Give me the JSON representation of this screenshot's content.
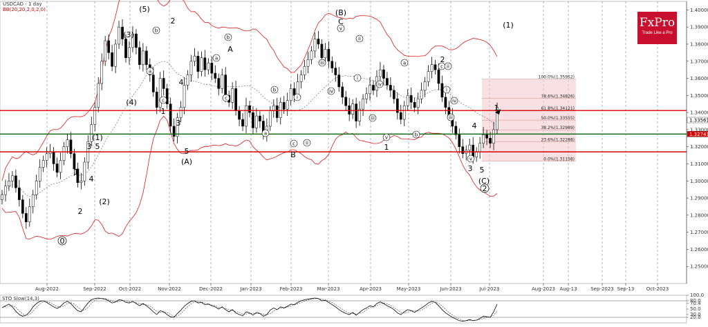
{
  "chart_data": {
    "type": "candlestick",
    "title": "USDCAD - 1 day",
    "indicator_label": "BB(20,20,2,0,2,0)",
    "ylim": [
      1.24,
      1.405
    ],
    "y_ticks": [
      "1.40000",
      "1.39000",
      "1.38000",
      "1.37000",
      "1.36000",
      "1.35000",
      "1.34000",
      "1.33000",
      "1.32000",
      "1.31000",
      "1.30000",
      "1.29000",
      "1.28000",
      "1.27000",
      "1.26000",
      "1.25000"
    ],
    "y_tick_values": [
      1.4,
      1.39,
      1.38,
      1.37,
      1.36,
      1.35,
      1.34,
      1.33,
      1.32,
      1.31,
      1.3,
      1.29,
      1.28,
      1.27,
      1.26,
      1.25
    ],
    "x_ticks": [
      "Aug-2022",
      "Sep-2022",
      "Oct-2022",
      "Nov-2022",
      "Dec-2022",
      "Jan-2023",
      "Feb-2023",
      "Mar-2023",
      "Apr-2023",
      "May-2023",
      "Jun-2023",
      "Jul-2023",
      "Aug-2023",
      "Aug-13",
      "Sep-2023",
      "Sep-13",
      "Oct-2023"
    ],
    "price_labels": [
      "1.33561",
      "1.32741"
    ],
    "price_label_values": [
      1.33561,
      1.32741
    ],
    "horizontal_lines": [
      {
        "value": 1.3412,
        "color": "#d60000"
      },
      {
        "value": 1.3274,
        "color": "#006400"
      },
      {
        "value": 1.317,
        "color": "#d60000"
      }
    ],
    "fib_levels": [
      {
        "label": "100.0%(1.35952)",
        "value": 1.35952
      },
      {
        "label": "78.6%(1.34826)",
        "value": 1.34826
      },
      {
        "label": "61.8%(1.34121)",
        "value": 1.34121
      },
      {
        "label": "50.0%(1.33555)",
        "value": 1.33555
      },
      {
        "label": "38.2%(1.32989)",
        "value": 1.32989
      },
      {
        "label": "23.6%(1.32288)",
        "value": 1.32288
      },
      {
        "label": "0.0%(1.31158)",
        "value": 1.31158
      }
    ],
    "close_series": [
      1.292,
      1.297,
      1.3,
      1.303,
      1.296,
      1.289,
      1.281,
      1.276,
      1.285,
      1.292,
      1.3,
      1.308,
      1.312,
      1.316,
      1.317,
      1.31,
      1.305,
      1.312,
      1.32,
      1.324,
      1.316,
      1.307,
      1.299,
      1.3,
      1.311,
      1.323,
      1.333,
      1.343,
      1.357,
      1.37,
      1.382,
      1.375,
      1.367,
      1.38,
      1.39,
      1.383,
      1.372,
      1.378,
      1.386,
      1.378,
      1.368,
      1.376,
      1.368,
      1.362,
      1.352,
      1.343,
      1.36,
      1.354,
      1.345,
      1.332,
      1.326,
      1.337,
      1.343,
      1.356,
      1.362,
      1.37,
      1.373,
      1.364,
      1.372,
      1.365,
      1.369,
      1.363,
      1.36,
      1.354,
      1.362,
      1.35,
      1.346,
      1.354,
      1.341,
      1.336,
      1.332,
      1.344,
      1.34,
      1.331,
      1.338,
      1.335,
      1.327,
      1.332,
      1.341,
      1.344,
      1.337,
      1.346,
      1.342,
      1.347,
      1.354,
      1.35,
      1.358,
      1.362,
      1.367,
      1.371,
      1.376,
      1.383,
      1.38,
      1.372,
      1.377,
      1.37,
      1.366,
      1.362,
      1.355,
      1.349,
      1.344,
      1.339,
      1.345,
      1.335,
      1.342,
      1.348,
      1.351,
      1.356,
      1.353,
      1.361,
      1.365,
      1.36,
      1.356,
      1.353,
      1.348,
      1.34,
      1.336,
      1.344,
      1.35,
      1.346,
      1.343,
      1.348,
      1.353,
      1.358,
      1.364,
      1.368,
      1.365,
      1.357,
      1.349,
      1.343,
      1.338,
      1.332,
      1.327,
      1.32,
      1.316,
      1.318,
      1.321,
      1.314,
      1.317,
      1.322,
      1.327,
      1.325,
      1.322,
      1.33,
      1.343
    ],
    "annotations": [
      {
        "text": "(5)",
        "style": "wave",
        "date": "Oct-2022"
      },
      {
        "text": "(3)",
        "style": "wave",
        "date": "Sep-2022"
      },
      {
        "text": "(4)",
        "style": "wave",
        "date": "Oct-2022"
      },
      {
        "text": "(1)",
        "style": "wave",
        "date": "Sep-2022"
      },
      {
        "text": "(2)",
        "style": "wave",
        "date": "Sep-2022"
      },
      {
        "text": "(A)",
        "style": "wave",
        "date": "Nov-2022"
      },
      {
        "text": "(B)",
        "style": "wave",
        "date": "Mar-2023"
      },
      {
        "text": "(C)",
        "style": "wave",
        "date": "Jun-2023"
      },
      {
        "text": "(1)",
        "style": "wave",
        "date": "Aug-2023"
      },
      {
        "text": "A",
        "style": "wave",
        "date": "Dec-2022"
      },
      {
        "text": "B",
        "style": "wave",
        "date": "Feb-2023"
      },
      {
        "text": "C",
        "style": "wave",
        "date": "Mar-2023"
      },
      {
        "text": "1",
        "style": "wave",
        "date": "Aug-2022"
      },
      {
        "text": "2",
        "style": "wave",
        "date": "Aug-2022"
      },
      {
        "text": "3",
        "style": "wave",
        "date": "Sep-2022"
      },
      {
        "text": "4",
        "style": "wave",
        "date": "Sep-2022"
      },
      {
        "text": "5",
        "style": "wave",
        "date": "Sep-2022"
      },
      {
        "text": "2",
        "style": "wave",
        "date": "Nov-2022"
      },
      {
        "text": "4",
        "style": "wave",
        "date": "Nov-2022"
      },
      {
        "text": "1",
        "style": "wave",
        "date": "Nov-2022"
      },
      {
        "text": "3",
        "style": "wave",
        "date": "Nov-2022"
      },
      {
        "text": "5",
        "style": "wave",
        "date": "Nov-2022"
      },
      {
        "text": "1",
        "style": "wave",
        "date": "Apr-2023"
      },
      {
        "text": "2",
        "style": "wave",
        "date": "May-2023"
      },
      {
        "text": "4",
        "style": "wave",
        "date": "Jun-2023"
      },
      {
        "text": "3",
        "style": "wave",
        "date": "Jun-2023"
      },
      {
        "text": "5",
        "style": "wave",
        "date": "Jun-2023"
      },
      {
        "text": "1",
        "style": "wave",
        "date": "Jul-2023"
      },
      {
        "text": "0",
        "style": "circle",
        "date": "Aug-2022"
      },
      {
        "text": "2",
        "style": "circle",
        "date": "Jun-2023"
      },
      {
        "text": "a",
        "style": "circle-s",
        "date": "Oct-2022"
      },
      {
        "text": "b",
        "style": "circle-s",
        "date": "Oct-2022"
      },
      {
        "text": "c",
        "style": "circle-s",
        "date": "Nov-2022"
      },
      {
        "text": "a",
        "style": "circle-s",
        "date": "Dec-2022"
      },
      {
        "text": "b",
        "style": "circle-s",
        "date": "Dec-2022"
      },
      {
        "text": "c",
        "style": "circle-s",
        "date": "Dec-2022"
      },
      {
        "text": "a",
        "style": "circle-s",
        "date": "Jan-2023"
      },
      {
        "text": "b",
        "style": "circle-s",
        "date": "Jan-2023"
      },
      {
        "text": "c",
        "style": "circle-s",
        "date": "Feb-2023"
      },
      {
        "text": "i",
        "style": "circle-s",
        "date": "Feb-2023"
      },
      {
        "text": "ii",
        "style": "circle-s",
        "date": "Feb-2023"
      },
      {
        "text": "iii",
        "style": "circle-s",
        "date": "Mar-2023"
      },
      {
        "text": "iv",
        "style": "circle-s",
        "date": "Mar-2023"
      },
      {
        "text": "v",
        "style": "circle-s",
        "date": "Mar-2023"
      },
      {
        "text": "ii",
        "style": "circle-s",
        "date": "Mar-2023"
      },
      {
        "text": "i",
        "style": "circle-s",
        "date": "Mar-2023"
      },
      {
        "text": "iii",
        "style": "circle-s",
        "date": "Apr-2023"
      },
      {
        "text": "iv",
        "style": "circle-s",
        "date": "Apr-2023"
      },
      {
        "text": "v",
        "style": "circle-s",
        "date": "Apr-2023"
      },
      {
        "text": "a",
        "style": "circle-s",
        "date": "May-2023"
      },
      {
        "text": "b",
        "style": "circle-s",
        "date": "May-2023"
      },
      {
        "text": "c",
        "style": "circle-s",
        "date": "May-2023"
      },
      {
        "text": "ii",
        "style": "circle-s",
        "date": "May-2023"
      },
      {
        "text": "i",
        "style": "circle-s",
        "date": "Jun-2023"
      },
      {
        "text": "iv",
        "style": "circle-s",
        "date": "Jun-2023"
      },
      {
        "text": "iii",
        "style": "circle-s",
        "date": "Jun-2023"
      },
      {
        "text": "v",
        "style": "circle-s",
        "date": "Jun-2023"
      }
    ],
    "stoch": {
      "label": "STO Slow(14,3)",
      "ylim": [
        0,
        100
      ],
      "ticks": [
        "100.0",
        "80.0",
        "70.4",
        "50.0",
        "30.0",
        "20.0"
      ],
      "tick_values": [
        100,
        80,
        70.4,
        50,
        30,
        20
      ],
      "values": [
        55,
        62,
        68,
        58,
        42,
        30,
        24,
        28,
        40,
        58,
        70,
        78,
        80,
        74,
        66,
        58,
        52,
        60,
        72,
        78,
        70,
        56,
        44,
        40,
        56,
        72,
        84,
        88,
        90,
        88,
        86,
        80,
        72,
        76,
        84,
        82,
        74,
        72,
        78,
        70,
        62,
        70,
        62,
        52,
        40,
        30,
        44,
        40,
        30,
        22,
        20,
        34,
        46,
        60,
        70,
        78,
        80,
        72,
        74,
        66,
        68,
        62,
        58,
        50,
        58,
        48,
        40,
        48,
        36,
        30,
        26,
        40,
        36,
        28,
        38,
        34,
        24,
        30,
        46,
        54,
        48,
        58,
        54,
        60,
        68,
        66,
        74,
        80,
        84,
        86,
        88,
        90,
        88,
        80,
        82,
        74,
        66,
        58,
        48,
        40,
        34,
        30,
        38,
        28,
        38,
        48,
        54,
        62,
        58,
        70,
        76,
        70,
        62,
        56,
        48,
        36,
        30,
        40,
        48,
        44,
        38,
        46,
        54,
        62,
        72,
        78,
        74,
        62,
        48,
        36,
        28,
        20,
        14,
        8,
        6,
        8,
        12,
        8,
        10,
        16,
        24,
        22,
        20,
        40,
        68
      ]
    }
  },
  "brand": {
    "name": "FxPro",
    "tagline": "Trade Like a Pro"
  }
}
